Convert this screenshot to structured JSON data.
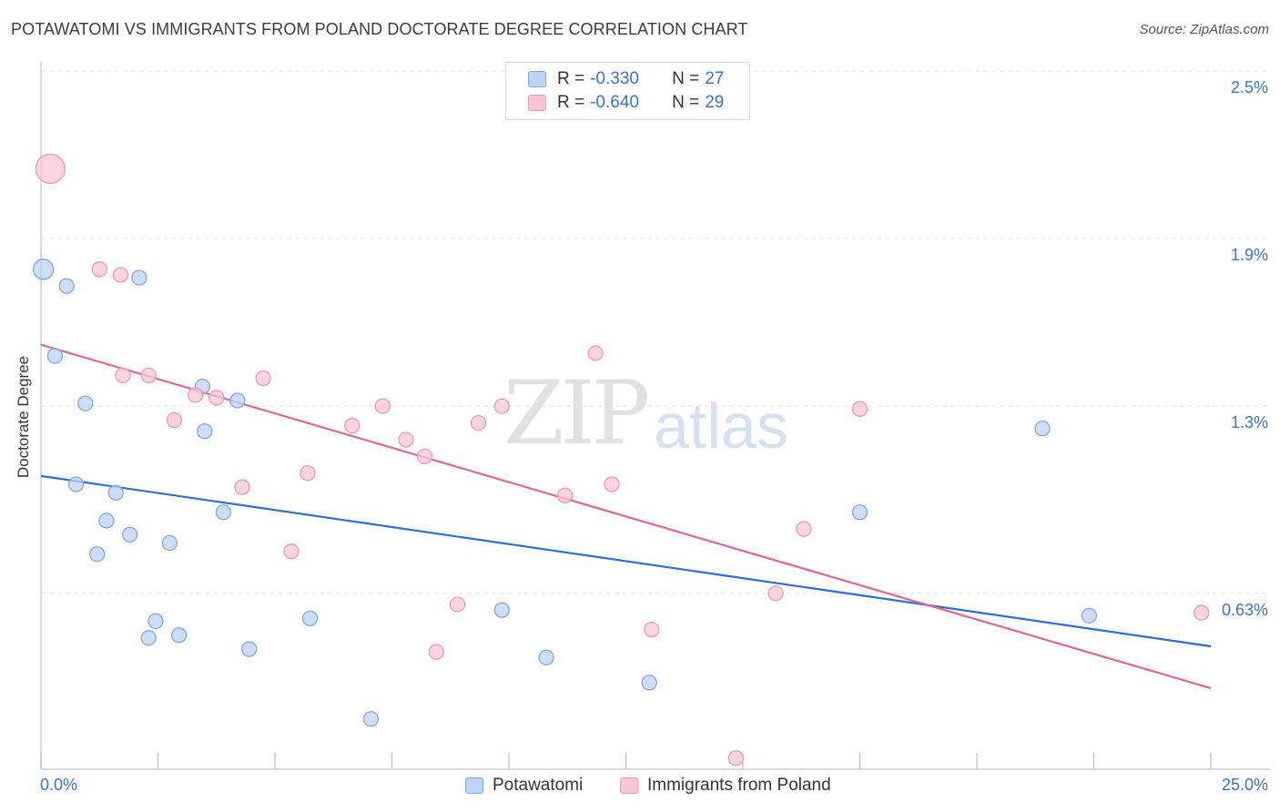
{
  "title": "POTAWATOMI VS IMMIGRANTS FROM POLAND DOCTORATE DEGREE CORRELATION CHART",
  "source": "Source: ZipAtlas.com",
  "watermark": {
    "zip": "ZIP",
    "atlas": "atlas"
  },
  "legend": {
    "r_label": "R =",
    "n_label": "N =",
    "rows": [
      {
        "r": "-0.330",
        "n": "27"
      },
      {
        "r": "-0.640",
        "n": "29"
      }
    ]
  },
  "colors": {
    "potawatomi_fill": "#bcd4f5",
    "potawatomi_stroke": "#7fa8e0",
    "potawatomi_line": "#2a6fd3",
    "poland_fill": "#f8c6d6",
    "poland_stroke": "#ec9ab4",
    "poland_line": "#e36595",
    "tick_text": "#3a73d0",
    "grid": "#e3e3e3"
  },
  "chart_data": {
    "type": "scatter",
    "title": "POTAWATOMI VS IMMIGRANTS FROM POLAND DOCTORATE DEGREE CORRELATION CHART",
    "xlabel": "",
    "ylabel": "Doctorate Degree",
    "xlim": [
      0,
      25
    ],
    "ylim": [
      0,
      2.5
    ],
    "x_tick_labels": [
      "0.0%",
      "25.0%"
    ],
    "y_ticks": [
      0.63,
      1.3,
      1.9,
      2.5
    ],
    "y_tick_labels": [
      "0.63%",
      "1.3%",
      "1.9%",
      "2.5%"
    ],
    "grid": true,
    "legend_position": "top-center",
    "series": [
      {
        "name": "Potawatomi",
        "r": -0.33,
        "n": 27,
        "trend": {
          "x0": 0,
          "y0": 1.05,
          "x1": 25,
          "y1": 0.44
        },
        "points": [
          {
            "x": 0.05,
            "y": 1.79,
            "s": 1.5
          },
          {
            "x": 0.55,
            "y": 1.73,
            "s": 1
          },
          {
            "x": 2.1,
            "y": 1.76,
            "s": 1
          },
          {
            "x": 0.3,
            "y": 1.48,
            "s": 1
          },
          {
            "x": 0.95,
            "y": 1.31,
            "s": 1
          },
          {
            "x": 3.45,
            "y": 1.37,
            "s": 1
          },
          {
            "x": 4.2,
            "y": 1.32,
            "s": 1
          },
          {
            "x": 3.5,
            "y": 1.21,
            "s": 1
          },
          {
            "x": 0.75,
            "y": 1.02,
            "s": 1
          },
          {
            "x": 1.6,
            "y": 0.99,
            "s": 1
          },
          {
            "x": 1.4,
            "y": 0.89,
            "s": 1
          },
          {
            "x": 1.9,
            "y": 0.84,
            "s": 1
          },
          {
            "x": 3.9,
            "y": 0.92,
            "s": 1
          },
          {
            "x": 1.2,
            "y": 0.77,
            "s": 1
          },
          {
            "x": 2.75,
            "y": 0.81,
            "s": 1
          },
          {
            "x": 2.45,
            "y": 0.53,
            "s": 1
          },
          {
            "x": 2.3,
            "y": 0.47,
            "s": 1
          },
          {
            "x": 2.95,
            "y": 0.48,
            "s": 1
          },
          {
            "x": 4.45,
            "y": 0.43,
            "s": 1
          },
          {
            "x": 5.75,
            "y": 0.54,
            "s": 1
          },
          {
            "x": 9.85,
            "y": 0.57,
            "s": 1
          },
          {
            "x": 10.8,
            "y": 0.4,
            "s": 1
          },
          {
            "x": 13,
            "y": 0.31,
            "s": 1
          },
          {
            "x": 7.05,
            "y": 0.18,
            "s": 1
          },
          {
            "x": 17.5,
            "y": 0.92,
            "s": 1
          },
          {
            "x": 21.4,
            "y": 1.22,
            "s": 1
          },
          {
            "x": 22.4,
            "y": 0.55,
            "s": 1
          }
        ]
      },
      {
        "name": "Immigrants from Poland",
        "r": -0.64,
        "n": 29,
        "trend": {
          "x0": 0,
          "y0": 1.52,
          "x1": 25,
          "y1": 0.29
        },
        "points": [
          {
            "x": 0.2,
            "y": 2.15,
            "s": 2
          },
          {
            "x": 1.25,
            "y": 1.79,
            "s": 1
          },
          {
            "x": 1.7,
            "y": 1.77,
            "s": 1
          },
          {
            "x": 11.85,
            "y": 1.49,
            "s": 1
          },
          {
            "x": 1.75,
            "y": 1.41,
            "s": 1
          },
          {
            "x": 2.3,
            "y": 1.41,
            "s": 1
          },
          {
            "x": 4.75,
            "y": 1.4,
            "s": 1
          },
          {
            "x": 3.3,
            "y": 1.34,
            "s": 1
          },
          {
            "x": 3.75,
            "y": 1.33,
            "s": 1
          },
          {
            "x": 2.85,
            "y": 1.25,
            "s": 1
          },
          {
            "x": 6.65,
            "y": 1.23,
            "s": 1
          },
          {
            "x": 7.3,
            "y": 1.3,
            "s": 1
          },
          {
            "x": 9.35,
            "y": 1.24,
            "s": 1
          },
          {
            "x": 9.85,
            "y": 1.3,
            "s": 1
          },
          {
            "x": 7.8,
            "y": 1.18,
            "s": 1
          },
          {
            "x": 8.2,
            "y": 1.12,
            "s": 1
          },
          {
            "x": 17.5,
            "y": 1.29,
            "s": 1
          },
          {
            "x": 5.7,
            "y": 1.06,
            "s": 1
          },
          {
            "x": 4.3,
            "y": 1.01,
            "s": 1
          },
          {
            "x": 11.2,
            "y": 0.98,
            "s": 1
          },
          {
            "x": 12.2,
            "y": 1.02,
            "s": 1
          },
          {
            "x": 16.3,
            "y": 0.86,
            "s": 1
          },
          {
            "x": 5.35,
            "y": 0.78,
            "s": 1
          },
          {
            "x": 15.7,
            "y": 0.63,
            "s": 1
          },
          {
            "x": 8.9,
            "y": 0.59,
            "s": 1
          },
          {
            "x": 13.05,
            "y": 0.5,
            "s": 1
          },
          {
            "x": 8.45,
            "y": 0.42,
            "s": 1
          },
          {
            "x": 24.8,
            "y": 0.56,
            "s": 1
          },
          {
            "x": 14.85,
            "y": 0.04,
            "s": 1
          }
        ]
      }
    ]
  }
}
